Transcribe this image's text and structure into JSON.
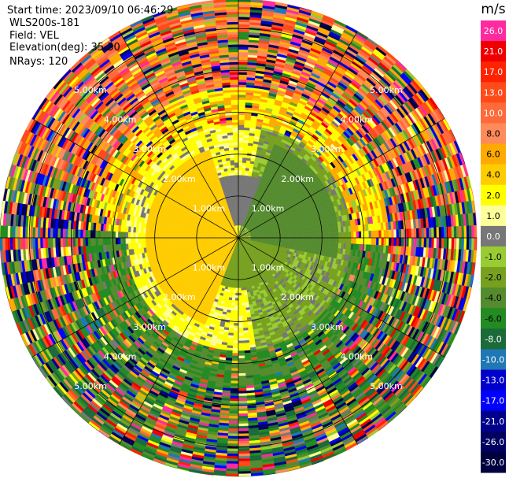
{
  "header": {
    "start_time": "Start time: 2023/09/10 06:46:29",
    "instrument": "WLS200s-181",
    "field": "Field: VEL",
    "elevation": "Elevation(deg): 35.30",
    "nrays": "NRays: 120"
  },
  "chart_data": {
    "type": "heatmap",
    "projection": "polar-ppi",
    "n_rays": 120,
    "range_rings_km": [
      1,
      2,
      3,
      4,
      5
    ],
    "ring_labels": [
      "1.00km",
      "2.00km",
      "3.00km",
      "4.00km",
      "5.00km"
    ],
    "max_range_km": 5.7,
    "colorbar": {
      "unit": "m/s",
      "ticks": [
        "26.0",
        "21.0",
        "17.0",
        "13.0",
        "10.0",
        "8.0",
        "6.0",
        "4.0",
        "2.0",
        "1.0",
        "0.0",
        "-1.0",
        "-2.0",
        "-4.0",
        "-6.0",
        "-8.0",
        "-10.0",
        "-13.0",
        "-17.0",
        "-21.0",
        "-26.0",
        "-30.0"
      ],
      "colors": [
        "#ff2aa0",
        "#ee0000",
        "#ff2200",
        "#ff4a1a",
        "#ff6a3a",
        "#ff8a5a",
        "#ffaa00",
        "#ffcc00",
        "#ffff00",
        "#ffff99",
        "#777777",
        "#99cc33",
        "#77a020",
        "#558b2f",
        "#228b22",
        "#1a6a3a",
        "#1f77b4",
        "#0000cc",
        "#0000ff",
        "#00008b",
        "#000060",
        "#000040"
      ]
    },
    "velocity_field": {
      "description_sectors": [
        {
          "az_from": 200,
          "az_to": 340,
          "range_km": [
            0.0,
            2.2
          ],
          "value": 4.0
        },
        {
          "az_from": 100,
          "az_to": 200,
          "range_km": [
            0.0,
            1.2
          ],
          "value": -2.0
        },
        {
          "az_from": 20,
          "az_to": 100,
          "range_km": [
            0.3,
            2.4
          ],
          "value": -4.0
        },
        {
          "az_from": 340,
          "az_to": 20,
          "range_km": [
            0.3,
            1.5
          ],
          "value": 0.0
        }
      ]
    }
  }
}
